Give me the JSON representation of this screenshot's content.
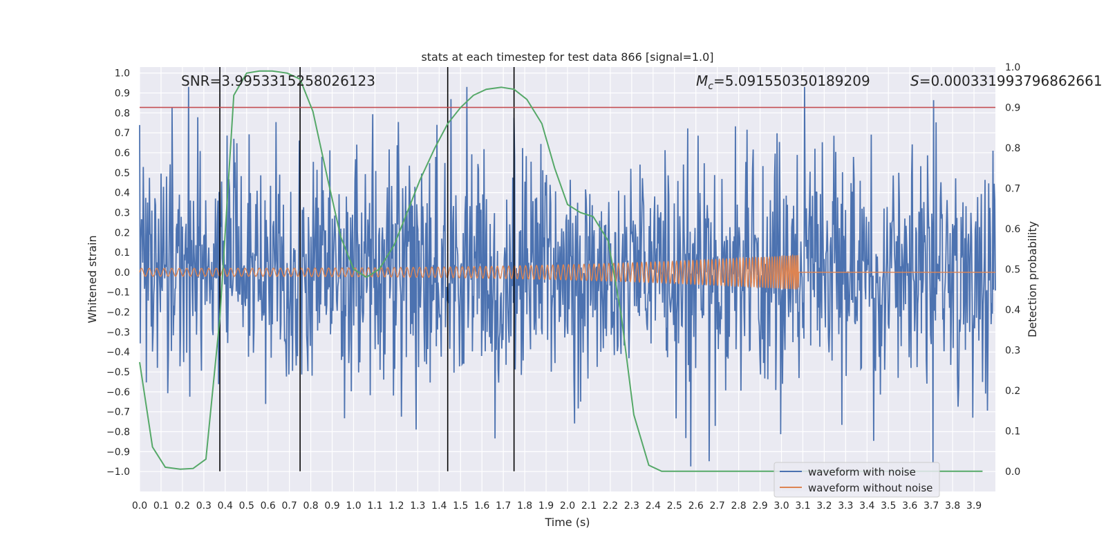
{
  "chart_data": {
    "type": "line",
    "title": "stats at each timestep for test data 866 [signal=1.0]",
    "xlabel": "Time (s)",
    "ylabel_left": "Whitened strain",
    "ylabel_right": "Detection probability",
    "xlim": [
      0.0,
      4.0
    ],
    "ylim_left": [
      -1.1,
      1.03
    ],
    "ylim_right": [
      -0.05,
      1.0
    ],
    "x_ticks": [
      "0.0",
      "0.1",
      "0.2",
      "0.3",
      "0.4",
      "0.5",
      "0.6",
      "0.7",
      "0.8",
      "0.9",
      "1.0",
      "1.1",
      "1.2",
      "1.3",
      "1.4",
      "1.5",
      "1.6",
      "1.7",
      "1.8",
      "1.9",
      "2.0",
      "2.1",
      "2.2",
      "2.3",
      "2.4",
      "2.5",
      "2.6",
      "2.7",
      "2.8",
      "2.9",
      "3.0",
      "3.1",
      "3.2",
      "3.3",
      "3.4",
      "3.5",
      "3.6",
      "3.7",
      "3.8",
      "3.9"
    ],
    "y_left_ticks": [
      "1.0",
      "0.9",
      "0.8",
      "0.7",
      "0.6",
      "0.5",
      "0.4",
      "0.3",
      "0.2",
      "0.1",
      "0.0",
      "−0.1",
      "−0.2",
      "−0.3",
      "−0.4",
      "−0.5",
      "−0.6",
      "−0.7",
      "−0.8",
      "−0.9",
      "−1.0"
    ],
    "y_right_ticks": [
      "1.0",
      "0.9",
      "0.8",
      "0.7",
      "0.6",
      "0.5",
      "0.4",
      "0.3",
      "0.2",
      "0.1",
      "0.0"
    ],
    "grid": true,
    "legend_position": "lower-right",
    "annotations": {
      "snr": "SNR=3.9953315258026123",
      "mc_symbol": "M",
      "mc_sub": "c",
      "mc_value": "=5.091550350189209",
      "s_symbol": "S",
      "s_value": "=0.0003319937968626​61"
    },
    "threshold_right": 0.9,
    "vlines_x": [
      0.375,
      0.75,
      1.44,
      1.75
    ],
    "series": [
      {
        "name": "waveform with noise",
        "color": "#4c72b0",
        "style": "noise",
        "amplitude": 0.55,
        "peak_max": 0.93,
        "peak_min": -1.0
      },
      {
        "name": "waveform without noise",
        "color": "#dd8452",
        "style": "chirp",
        "amplitude_start": 0.02,
        "amplitude_end": 0.09,
        "end_time": 3.08
      },
      {
        "name": "",
        "color": "#55a868",
        "axis": "right",
        "x": [
          0.0,
          0.06,
          0.12,
          0.19,
          0.25,
          0.31,
          0.375,
          0.44,
          0.5,
          0.56,
          0.62,
          0.69,
          0.75,
          0.81,
          0.88,
          0.94,
          1.0,
          1.06,
          1.12,
          1.19,
          1.25,
          1.31,
          1.38,
          1.44,
          1.5,
          1.56,
          1.62,
          1.69,
          1.75,
          1.81,
          1.88,
          1.94,
          2.0,
          2.06,
          2.12,
          2.19,
          2.25,
          2.31,
          2.38,
          2.44,
          3.94
        ],
        "y": [
          0.27,
          0.06,
          0.01,
          0.005,
          0.007,
          0.03,
          0.38,
          0.93,
          0.985,
          0.99,
          0.99,
          0.985,
          0.97,
          0.89,
          0.72,
          0.58,
          0.5,
          0.48,
          0.5,
          0.56,
          0.64,
          0.72,
          0.8,
          0.86,
          0.9,
          0.93,
          0.945,
          0.95,
          0.945,
          0.92,
          0.86,
          0.75,
          0.66,
          0.64,
          0.63,
          0.57,
          0.39,
          0.14,
          0.015,
          0.0,
          0.0
        ]
      }
    ]
  }
}
